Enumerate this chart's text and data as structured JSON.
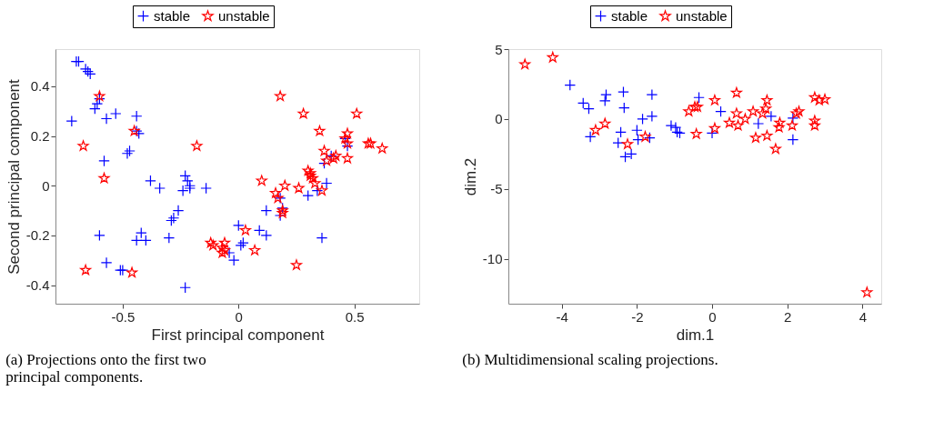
{
  "chart_data": [
    {
      "type": "scatter",
      "xlabel": "First principal component",
      "ylabel": "Second principal component",
      "xlim": [
        -0.79,
        0.78
      ],
      "ylim": [
        -0.475,
        0.55
      ],
      "xticks": [
        -0.5,
        0,
        0.5
      ],
      "yticks": [
        -0.4,
        -0.2,
        0,
        0.2,
        0.4
      ],
      "legend": "top",
      "annotations": [
        "(a) Projections onto the first two principal components."
      ],
      "series": [
        {
          "name": "stable",
          "color": "#0000ff",
          "marker": "cross",
          "x": [
            -0.7,
            -0.69,
            -0.66,
            -0.65,
            -0.64,
            -0.72,
            -0.62,
            -0.61,
            -0.6,
            -0.57,
            -0.53,
            -0.58,
            -0.48,
            -0.47,
            -0.44,
            -0.43,
            -0.44,
            -0.38,
            -0.34,
            -0.23,
            -0.22,
            -0.21,
            -0.21,
            -0.14,
            -0.24,
            -0.26,
            -0.28,
            -0.29,
            -0.6,
            -0.44,
            -0.42,
            -0.4,
            -0.3,
            -0.57,
            -0.51,
            -0.5,
            -0.23,
            0.0,
            -0.04,
            -0.02,
            0.01,
            0.02,
            0.09,
            0.12,
            0.12,
            0.18,
            0.19,
            0.18,
            0.3,
            0.34,
            0.38,
            0.36,
            0.37,
            0.4,
            0.47,
            0.46
          ],
          "values": [
            0.5,
            0.5,
            0.47,
            0.46,
            0.45,
            0.26,
            0.31,
            0.33,
            0.35,
            0.27,
            0.29,
            0.1,
            0.13,
            0.14,
            0.28,
            0.21,
            0.22,
            0.02,
            -0.01,
            0.04,
            0.02,
            0.0,
            -0.01,
            -0.01,
            -0.02,
            -0.1,
            -0.13,
            -0.14,
            -0.2,
            -0.22,
            -0.19,
            -0.22,
            -0.21,
            -0.31,
            -0.34,
            -0.34,
            -0.41,
            -0.16,
            -0.27,
            -0.3,
            -0.24,
            -0.23,
            -0.18,
            -0.2,
            -0.1,
            -0.05,
            -0.09,
            -0.12,
            -0.04,
            -0.02,
            0.01,
            -0.21,
            0.09,
            0.12,
            0.16,
            0.19
          ]
        },
        {
          "name": "unstable",
          "color": "#ff0000",
          "marker": "star",
          "x": [
            -0.6,
            -0.67,
            -0.58,
            -0.45,
            -0.18,
            -0.66,
            -0.46,
            0.18,
            0.28,
            0.51,
            0.35,
            0.47,
            0.46,
            0.47,
            0.56,
            0.57,
            0.62,
            0.37,
            0.38,
            0.41,
            0.42,
            0.47,
            0.3,
            0.31,
            0.31,
            0.32,
            0.33,
            0.36,
            0.26,
            0.2,
            0.1,
            0.16,
            0.17,
            0.19,
            0.19,
            0.03,
            -0.12,
            -0.11,
            -0.07,
            -0.06,
            -0.07,
            0.07,
            0.25,
            -0.06
          ],
          "values": [
            0.36,
            0.16,
            0.03,
            0.22,
            0.16,
            -0.34,
            -0.35,
            0.36,
            0.29,
            0.29,
            0.22,
            0.21,
            0.19,
            0.17,
            0.17,
            0.17,
            0.15,
            0.14,
            0.1,
            0.11,
            0.12,
            0.11,
            0.06,
            0.04,
            0.05,
            0.03,
            0.01,
            -0.02,
            -0.01,
            0.0,
            0.02,
            -0.03,
            -0.05,
            -0.1,
            -0.11,
            -0.18,
            -0.23,
            -0.24,
            -0.25,
            -0.26,
            -0.27,
            -0.26,
            -0.32,
            -0.23
          ]
        }
      ]
    },
    {
      "type": "scatter",
      "xlabel": "dim.1",
      "ylabel": "dim.2",
      "xlim": [
        -5.42,
        4.5
      ],
      "ylim": [
        -13.2,
        5.0
      ],
      "xticks": [
        -4,
        -2,
        0,
        2,
        4
      ],
      "yticks": [
        -10,
        -5,
        0,
        5
      ],
      "legend": "top",
      "annotations": [
        "(b) Multidimensional scaling projections."
      ],
      "series": [
        {
          "name": "stable",
          "color": "#0000ff",
          "marker": "cross",
          "x": [
            -3.78,
            -3.43,
            -3.28,
            -2.82,
            -2.85,
            -2.36,
            -2.34,
            -1.6,
            -1.6,
            -1.85,
            -3.24,
            -2.43,
            -2.5,
            -2.31,
            -2.15,
            -2.0,
            -1.97,
            -1.66,
            -1.09,
            -0.97,
            -0.93,
            -0.35,
            -0.86,
            0.0,
            0.23,
            1.57,
            1.23,
            2.15,
            2.15
          ],
          "values": [
            2.43,
            1.14,
            0.74,
            1.74,
            1.3,
            1.94,
            0.8,
            1.74,
            0.2,
            0.0,
            -1.27,
            -0.94,
            -1.7,
            -2.7,
            -2.5,
            -0.8,
            -1.47,
            -1.34,
            -0.47,
            -0.6,
            -0.94,
            1.54,
            -1.0,
            -1.0,
            0.54,
            0.2,
            -0.33,
            -1.47,
            0.07
          ]
        },
        {
          "name": "unstable",
          "color": "#ff0000",
          "marker": "star",
          "x": [
            -4.98,
            -4.24,
            -2.85,
            -3.1,
            -2.25,
            -1.78,
            -0.42,
            -0.62,
            -0.46,
            -0.39,
            0.07,
            0.65,
            0.65,
            0.69,
            0.46,
            0.07,
            0.88,
            1.09,
            1.34,
            1.46,
            1.43,
            1.16,
            1.46,
            1.69,
            1.78,
            1.8,
            2.13,
            2.31,
            2.24,
            2.73,
            2.85,
            3.0,
            2.73,
            2.73,
            4.12
          ],
          "values": [
            3.9,
            4.4,
            -0.33,
            -0.8,
            -1.8,
            -1.27,
            -1.07,
            0.54,
            0.87,
            0.87,
            1.34,
            1.87,
            0.4,
            -0.47,
            -0.27,
            -0.67,
            0.0,
            0.54,
            0.4,
            1.34,
            0.74,
            -1.34,
            -1.2,
            -2.14,
            -0.6,
            -0.27,
            -0.47,
            0.54,
            0.4,
            1.54,
            1.34,
            1.4,
            -0.13,
            -0.47,
            -12.4
          ]
        }
      ]
    }
  ]
}
